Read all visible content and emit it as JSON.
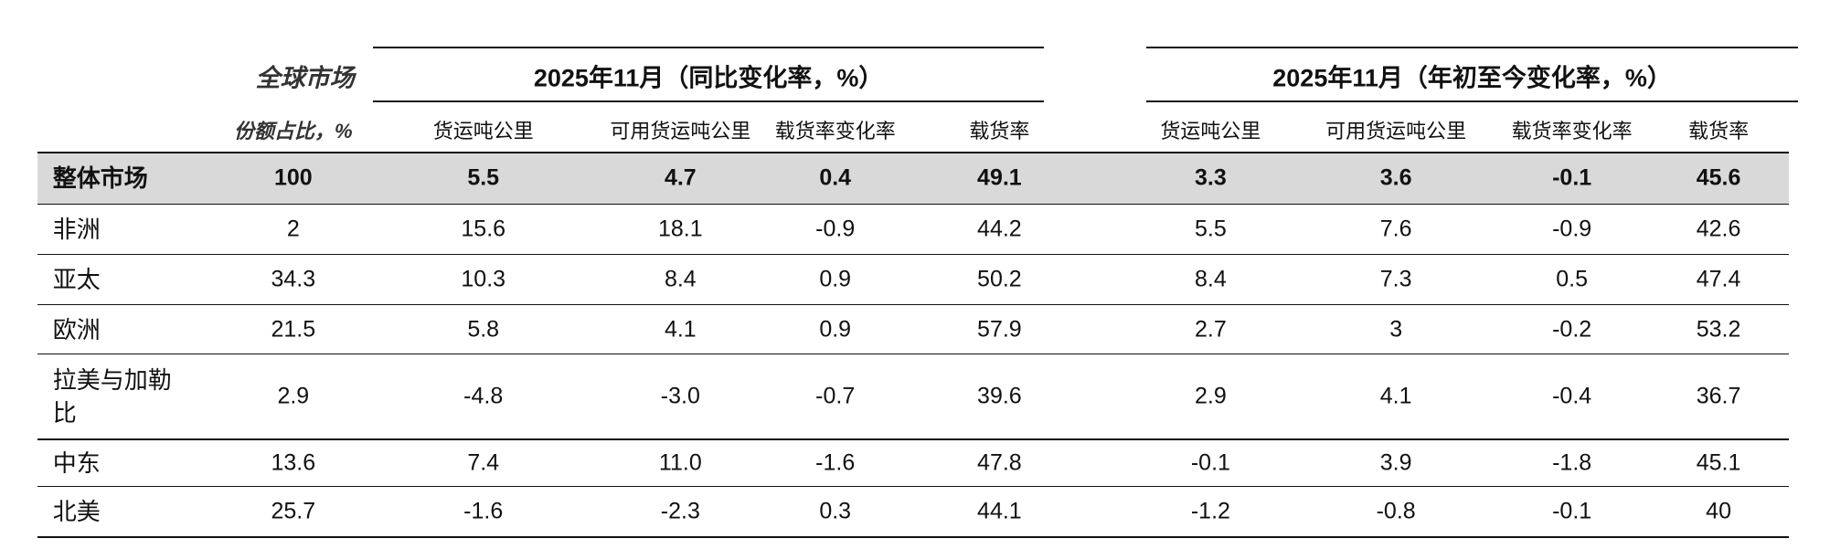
{
  "header": {
    "market_share_title": "全球市场",
    "market_share_subtitle": "份额占比，%",
    "groups": [
      {
        "title": "2025年11月（同比变化率，%）",
        "columns": [
          "货运吨公里",
          "可用货运吨公里",
          "载货率变化率",
          "载货率"
        ]
      },
      {
        "title": "2025年11月（年初至今变化率，%）",
        "columns": [
          "货运吨公里",
          "可用货运吨公里",
          "载货率变化率",
          "载货率"
        ]
      }
    ]
  },
  "table": {
    "rows": [
      [
        "整体市场",
        "100",
        "5.5",
        "4.7",
        "0.4",
        "49.1",
        "3.3",
        "3.6",
        "-0.1",
        "45.6"
      ],
      [
        "非洲",
        "2",
        "15.6",
        "18.1",
        "-0.9",
        "44.2",
        "5.5",
        "7.6",
        "-0.9",
        "42.6"
      ],
      [
        "亚太",
        "34.3",
        "10.3",
        "8.4",
        "0.9",
        "50.2",
        "8.4",
        "7.3",
        "0.5",
        "47.4"
      ],
      [
        "欧洲",
        "21.5",
        "5.8",
        "4.1",
        "0.9",
        "57.9",
        "2.7",
        "3",
        "-0.2",
        "53.2"
      ],
      [
        "拉美与加勒比",
        "2.9",
        "-4.8",
        "-3.0",
        "-0.7",
        "39.6",
        "2.9",
        "4.1",
        "-0.4",
        "36.7"
      ],
      [
        "中东",
        "13.6",
        "7.4",
        "11.0",
        "-1.6",
        "47.8",
        "-0.1",
        "3.9",
        "-1.8",
        "45.1"
      ],
      [
        "北美",
        "25.7",
        "-1.6",
        "-2.3",
        "0.3",
        "44.1",
        "-1.2",
        "-0.8",
        "-0.1",
        "40"
      ]
    ]
  }
}
